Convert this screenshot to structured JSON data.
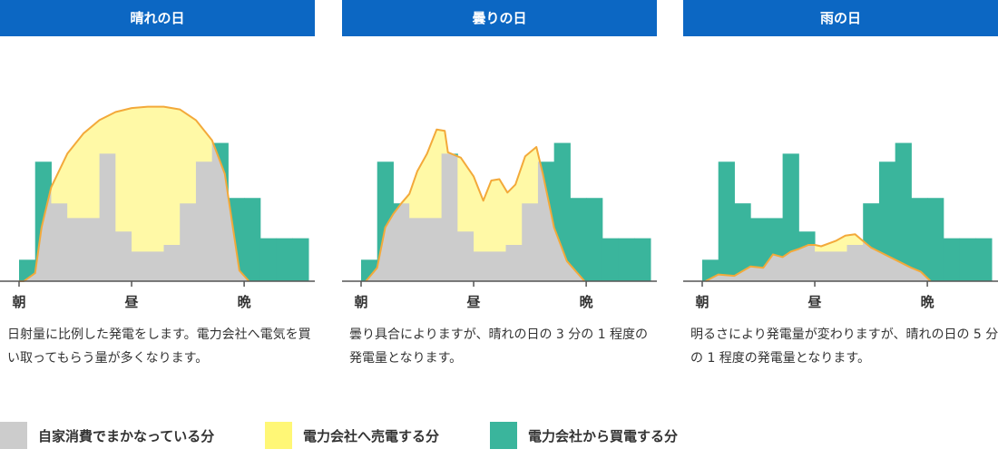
{
  "colors": {
    "header": "#0c67c3",
    "self": "#cccccc",
    "sell": "#fff9a6",
    "buy": "#3ab59c",
    "curve": "#f3a93a",
    "swatch_sell": "#fff776"
  },
  "panels": [
    {
      "title": "晴れの日",
      "description": "日射量に比例した発電をします。電力会社へ電気を買い取ってもらう量が多くなります。",
      "ticks": [
        "朝",
        "昼",
        "晩"
      ]
    },
    {
      "title": "曇りの日",
      "description": "曇り具合によりますが、晴れの日の 3 分の 1 程度の発電量となります。",
      "ticks": [
        "朝",
        "昼",
        "晩"
      ]
    },
    {
      "title": "雨の日",
      "description": "明るさにより発電量が変わりますが、晴れの日の 5 分の 1 程度の発電量となります。",
      "ticks": [
        "朝",
        "昼",
        "晩"
      ]
    }
  ],
  "legend": [
    {
      "label": "自家消費でまかなっている分",
      "color_key": "self"
    },
    {
      "label": "電力会社へ売電する分",
      "color_key": "swatch_sell"
    },
    {
      "label": "電力会社から買電する分",
      "color_key": "buy"
    }
  ],
  "chart_data": [
    {
      "type": "area",
      "x_domain": [
        0,
        18
      ],
      "tick_positions": [
        0,
        7,
        14
      ],
      "consumption": [
        0.16,
        0.89,
        0.58,
        0.47,
        0.47,
        0.95,
        0.37,
        0.22,
        0.22,
        0.27,
        0.58,
        0.89,
        1.03,
        0.62,
        0.62,
        0.32,
        0.32,
        0.32
      ],
      "generation_curve": [
        [
          0,
          0
        ],
        [
          0.3,
          0
        ],
        [
          1,
          0.06
        ],
        [
          1.4,
          0.4
        ],
        [
          2,
          0.7
        ],
        [
          3,
          0.95
        ],
        [
          4,
          1.1
        ],
        [
          5,
          1.2
        ],
        [
          6,
          1.26
        ],
        [
          7,
          1.29
        ],
        [
          8,
          1.3
        ],
        [
          9,
          1.3
        ],
        [
          10,
          1.28
        ],
        [
          11,
          1.2
        ],
        [
          12,
          1.05
        ],
        [
          12.8,
          0.8
        ],
        [
          13.3,
          0.4
        ],
        [
          13.7,
          0.08
        ],
        [
          14.3,
          0
        ]
      ]
    },
    {
      "type": "area",
      "x_domain": [
        0,
        18
      ],
      "tick_positions": [
        0,
        7,
        14
      ],
      "consumption": [
        0.16,
        0.89,
        0.58,
        0.47,
        0.47,
        0.95,
        0.37,
        0.22,
        0.22,
        0.27,
        0.58,
        0.89,
        1.03,
        0.62,
        0.62,
        0.32,
        0.32,
        0.32
      ],
      "generation_curve": [
        [
          0.3,
          0
        ],
        [
          1,
          0.1
        ],
        [
          1.5,
          0.4
        ],
        [
          2,
          0.5
        ],
        [
          2.5,
          0.58
        ],
        [
          3,
          0.65
        ],
        [
          3.5,
          0.82
        ],
        [
          4.1,
          0.95
        ],
        [
          4.7,
          1.13
        ],
        [
          5.2,
          1.12
        ],
        [
          5.4,
          0.96
        ],
        [
          6.2,
          0.92
        ],
        [
          7,
          0.78
        ],
        [
          7.6,
          0.6
        ],
        [
          8.1,
          0.75
        ],
        [
          8.6,
          0.76
        ],
        [
          9.1,
          0.66
        ],
        [
          9.6,
          0.72
        ],
        [
          10.2,
          0.93
        ],
        [
          10.9,
          1.0
        ],
        [
          11.3,
          0.8
        ],
        [
          12,
          0.4
        ],
        [
          12.8,
          0.15
        ],
        [
          13.9,
          0
        ]
      ]
    },
    {
      "type": "area",
      "x_domain": [
        0,
        18
      ],
      "tick_positions": [
        0,
        7,
        14
      ],
      "consumption": [
        0.16,
        0.89,
        0.58,
        0.47,
        0.47,
        0.95,
        0.37,
        0.22,
        0.22,
        0.27,
        0.58,
        0.89,
        1.03,
        0.62,
        0.62,
        0.32,
        0.32,
        0.32
      ],
      "generation_curve": [
        [
          0.2,
          0
        ],
        [
          1,
          0.05
        ],
        [
          2,
          0.04
        ],
        [
          3,
          0.11
        ],
        [
          3.8,
          0.1
        ],
        [
          4.4,
          0.2
        ],
        [
          5,
          0.18
        ],
        [
          5.5,
          0.22
        ],
        [
          6,
          0.24
        ],
        [
          6.6,
          0.27
        ],
        [
          7,
          0.27
        ],
        [
          7.4,
          0.26
        ],
        [
          8.3,
          0.3
        ],
        [
          8.9,
          0.34
        ],
        [
          9.5,
          0.35
        ],
        [
          10,
          0.3
        ],
        [
          10.5,
          0.25
        ],
        [
          11,
          0.22
        ],
        [
          12,
          0.16
        ],
        [
          13,
          0.1
        ],
        [
          13.6,
          0.07
        ],
        [
          14.2,
          0
        ]
      ]
    }
  ]
}
